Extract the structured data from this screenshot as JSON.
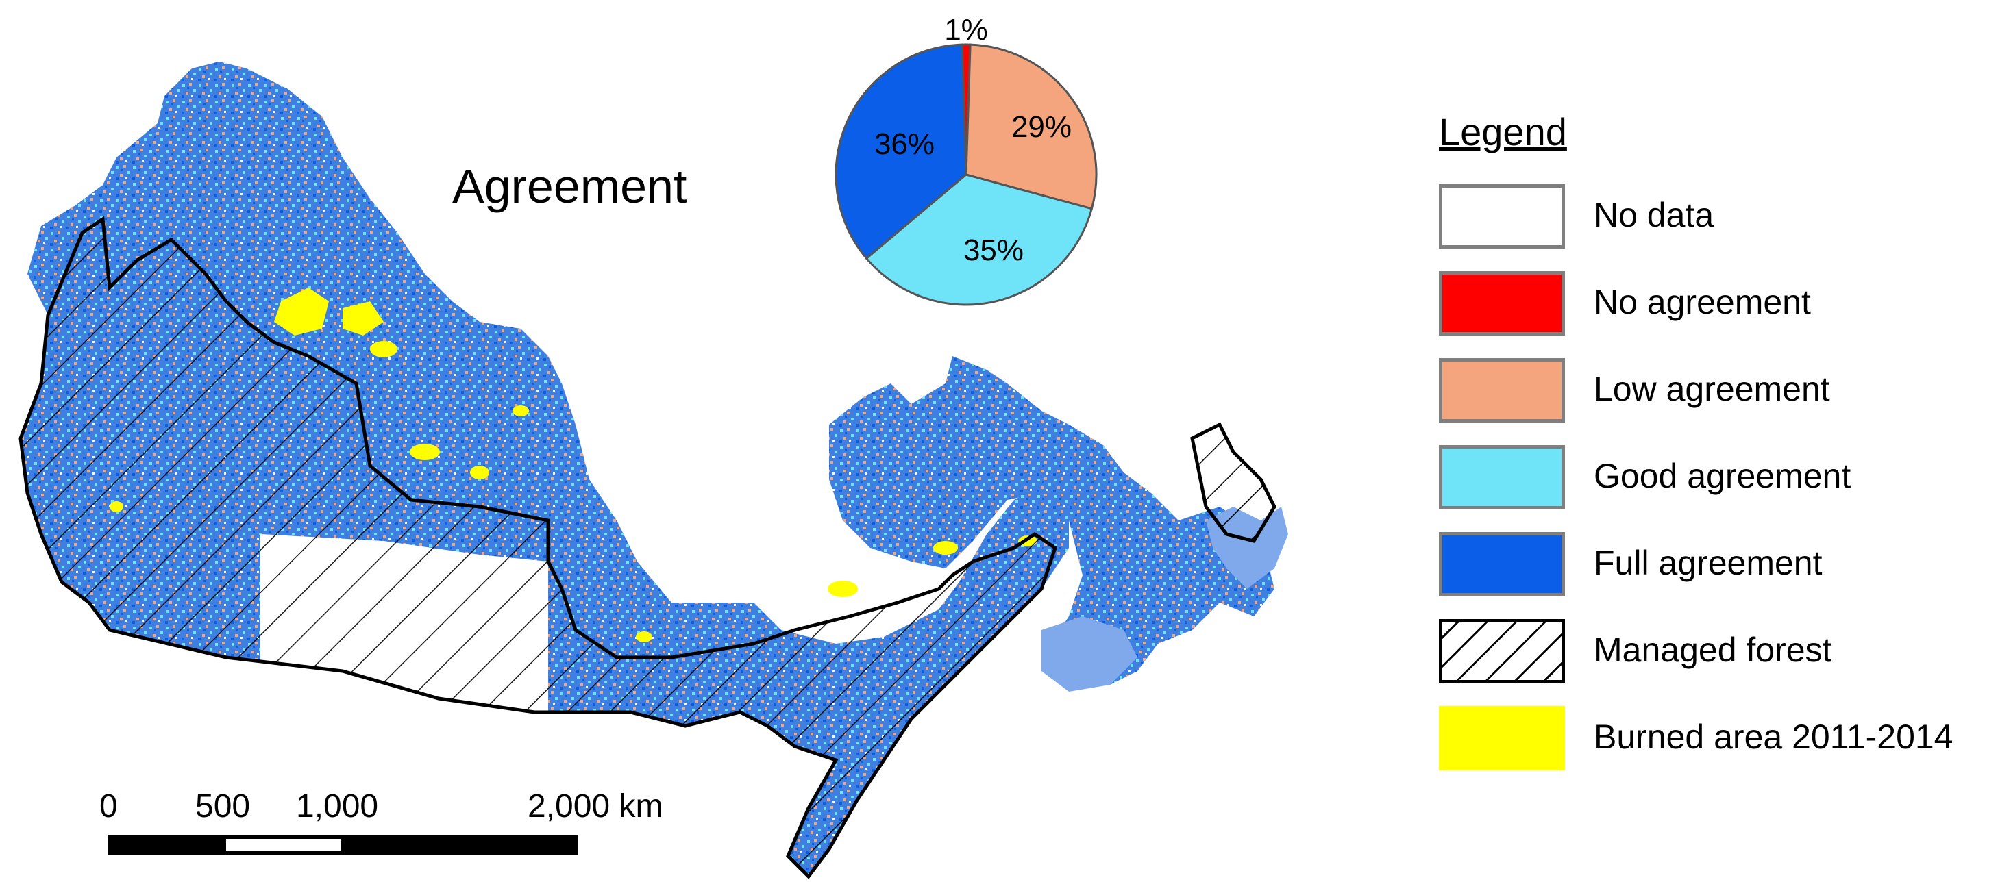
{
  "map": {
    "title": "Agreement",
    "classes": {
      "no_data": "#ffffff",
      "no_agreement": "#ff0000",
      "low_agreement": "#f4a57d",
      "good_agreement": "#6fe3f7",
      "full_agreement": "#0a5ee8",
      "burned": "#ffff00",
      "outline": "#000000"
    }
  },
  "pie": {
    "slices": [
      {
        "label": "1%",
        "value": 1,
        "color": "#ff0000"
      },
      {
        "label": "29%",
        "value": 29,
        "color": "#f4a57d"
      },
      {
        "label": "35%",
        "value": 35,
        "color": "#6fe3f7"
      },
      {
        "label": "36%",
        "value": 36,
        "color": "#0a5ee8"
      }
    ]
  },
  "legend": {
    "title": "Legend",
    "items": [
      {
        "label": "No data",
        "color": "#ffffff",
        "pattern": "solid"
      },
      {
        "label": "No agreement",
        "color": "#ff0000",
        "pattern": "solid"
      },
      {
        "label": "Low agreement",
        "color": "#f4a57d",
        "pattern": "solid"
      },
      {
        "label": "Good agreement",
        "color": "#6fe3f7",
        "pattern": "solid"
      },
      {
        "label": "Full agreement",
        "color": "#0a5ee8",
        "pattern": "solid"
      },
      {
        "label": "Managed forest",
        "color": "#ffffff",
        "pattern": "hatch"
      },
      {
        "label": "Burned area 2011-2014",
        "color": "#ffff00",
        "pattern": "solid"
      }
    ]
  },
  "scale_bar": {
    "labels": [
      "0",
      "500",
      "1,000",
      "2,000 km"
    ]
  }
}
